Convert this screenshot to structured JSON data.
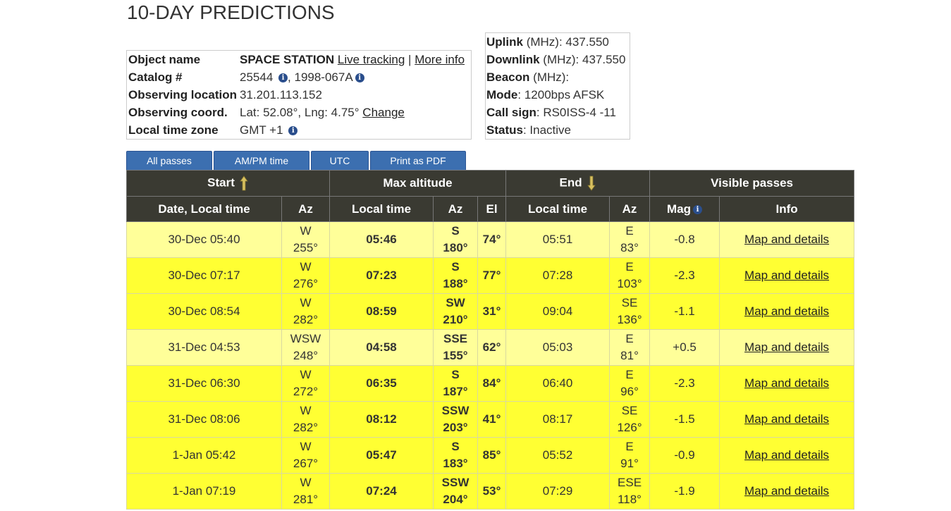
{
  "page_title": "10-DAY PREDICTIONS",
  "object": {
    "name_label": "Object name",
    "name_value": "SPACE STATION",
    "live_tracking": "Live tracking",
    "sep": "|",
    "more_info": "More info",
    "catalog_label": "Catalog #",
    "catalog_value": "25544",
    "catalog_sep": ",",
    "intl_designator": "1998-067A",
    "location_label": "Observing location",
    "location_value": "31.201.113.152",
    "coord_label": "Observing coord.",
    "coord_value": "Lat: 52.08°, Lng: 4.75°",
    "change_link": "Change",
    "tz_label": "Local time zone",
    "tz_value": "GMT +1"
  },
  "radio": {
    "uplink_label": "Uplink",
    "uplink_unit": "(MHz):",
    "uplink_value": "437.550",
    "downlink_label": "Downlink",
    "downlink_unit": "(MHz):",
    "downlink_value": "437.550",
    "beacon_label": "Beacon",
    "beacon_unit": "(MHz):",
    "mode_label": "Mode",
    "mode_value": "1200bps AFSK",
    "call_label": "Call sign",
    "call_value": "RS0ISS-4 -11",
    "status_label": "Status",
    "status_value": "Inactive"
  },
  "buttons": {
    "all_passes": "All passes",
    "ampm": "AM/PM time",
    "utc": "UTC",
    "pdf": "Print as PDF"
  },
  "table": {
    "group_headers": {
      "start": "Start",
      "max_altitude": "Max altitude",
      "end": "End",
      "visible": "Visible passes"
    },
    "columns": {
      "date_local": "Date, Local time",
      "az": "Az",
      "local_time": "Local time",
      "el": "El",
      "mag": "Mag",
      "info": "Info"
    },
    "info_link": "Map and details",
    "rows": [
      {
        "start": "30-Dec 05:40",
        "start_dir": "W",
        "start_deg": "255°",
        "max_time": "05:46",
        "max_dir": "S",
        "max_deg": "180°",
        "el": "74°",
        "end_time": "05:51",
        "end_dir": "E",
        "end_deg": "83°",
        "mag": "-0.8",
        "shade": "pale"
      },
      {
        "start": "30-Dec 07:17",
        "start_dir": "W",
        "start_deg": "276°",
        "max_time": "07:23",
        "max_dir": "S",
        "max_deg": "188°",
        "el": "77°",
        "end_time": "07:28",
        "end_dir": "E",
        "end_deg": "103°",
        "mag": "-2.3",
        "shade": "bright"
      },
      {
        "start": "30-Dec 08:54",
        "start_dir": "W",
        "start_deg": "282°",
        "max_time": "08:59",
        "max_dir": "SW",
        "max_deg": "210°",
        "el": "31°",
        "end_time": "09:04",
        "end_dir": "SE",
        "end_deg": "136°",
        "mag": "-1.1",
        "shade": "bright"
      },
      {
        "start": "31-Dec 04:53",
        "start_dir": "WSW",
        "start_deg": "248°",
        "max_time": "04:58",
        "max_dir": "SSE",
        "max_deg": "155°",
        "el": "62°",
        "end_time": "05:03",
        "end_dir": "E",
        "end_deg": "81°",
        "mag": "+0.5",
        "shade": "pale"
      },
      {
        "start": "31-Dec 06:30",
        "start_dir": "W",
        "start_deg": "272°",
        "max_time": "06:35",
        "max_dir": "S",
        "max_deg": "187°",
        "el": "84°",
        "end_time": "06:40",
        "end_dir": "E",
        "end_deg": "96°",
        "mag": "-2.3",
        "shade": "bright"
      },
      {
        "start": "31-Dec 08:06",
        "start_dir": "W",
        "start_deg": "282°",
        "max_time": "08:12",
        "max_dir": "SSW",
        "max_deg": "203°",
        "el": "41°",
        "end_time": "08:17",
        "end_dir": "SE",
        "end_deg": "126°",
        "mag": "-1.5",
        "shade": "bright"
      },
      {
        "start": "1-Jan 05:42",
        "start_dir": "W",
        "start_deg": "267°",
        "max_time": "05:47",
        "max_dir": "S",
        "max_deg": "183°",
        "el": "85°",
        "end_time": "05:52",
        "end_dir": "E",
        "end_deg": "91°",
        "mag": "-0.9",
        "shade": "bright"
      },
      {
        "start": "1-Jan 07:19",
        "start_dir": "W",
        "start_deg": "281°",
        "max_time": "07:24",
        "max_dir": "SSW",
        "max_deg": "204°",
        "el": "53°",
        "end_time": "07:29",
        "end_dir": "ESE",
        "end_deg": "118°",
        "mag": "-1.9",
        "shade": "bright"
      }
    ]
  },
  "colors": {
    "header_bg": "#3a3a32",
    "button_bg": "#3c6fb0",
    "row_pale": "#ffff99",
    "row_bright": "#ffff33"
  },
  "icons": {
    "info": "info-icon",
    "arrow_up": "arrow-up-icon",
    "arrow_down": "arrow-down-icon"
  }
}
